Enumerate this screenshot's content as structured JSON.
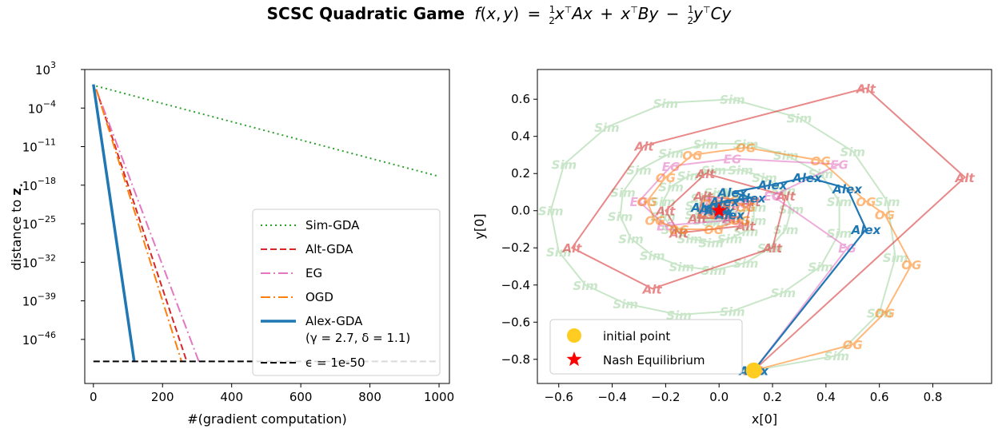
{
  "figure": {
    "title_bold": "SCSC Quadratic Game",
    "title_formula": {
      "f": "f",
      "x": "x",
      "y": "y",
      "A": "A",
      "B": "B",
      "C": "C",
      "one": "1",
      "two": "2",
      "T": "⊤",
      "open": "(",
      "comma": ",",
      "close": ")",
      "eq": "=",
      "plus": "+",
      "minus": "−"
    }
  },
  "chart_data": [
    {
      "type": "line",
      "xlabel": "#(gradient computation)",
      "ylabel": "distance to ",
      "ylabel_bold": "z",
      "ylabel_sub": "⋆",
      "yscale": "log",
      "xlim": [
        -25,
        1030
      ],
      "ylim_exp": [
        -54,
        3
      ],
      "x_ticks": [
        0,
        200,
        400,
        600,
        800,
        1000
      ],
      "y_ticks": [
        {
          "base": "10",
          "exp": "3",
          "value_exp": 3
        },
        {
          "base": "10",
          "exp": "−4",
          "value_exp": -4
        },
        {
          "base": "10",
          "exp": "−11",
          "value_exp": -11
        },
        {
          "base": "10",
          "exp": "−18",
          "value_exp": -18
        },
        {
          "base": "10",
          "exp": "−25",
          "value_exp": -25
        },
        {
          "base": "10",
          "exp": "−32",
          "value_exp": -32
        },
        {
          "base": "10",
          "exp": "−39",
          "value_exp": -39
        },
        {
          "base": "10",
          "exp": "−46",
          "value_exp": -46
        }
      ],
      "series": [
        {
          "name": "Sim-GDA",
          "color": "#2ca02c",
          "dash": "2,4",
          "width": 2,
          "points": [
            [
              8,
              0
            ],
            [
              1000,
              -16.4
            ]
          ]
        },
        {
          "name": "Alt-GDA",
          "color": "#d62728",
          "dash": "8,4",
          "width": 2,
          "points": [
            [
              8,
              -0.6
            ],
            [
              270,
              -50
            ]
          ]
        },
        {
          "name": "EG",
          "color": "#e377c2",
          "dash": "12,4,2,4",
          "width": 2,
          "points": [
            [
              8,
              -0.6
            ],
            [
              305,
              -50
            ]
          ]
        },
        {
          "name": "OGD",
          "color": "#ff7f0e",
          "dash": "12,4,2,4",
          "width": 2,
          "points": [
            [
              8,
              -0.6
            ],
            [
              255,
              -50
            ]
          ]
        },
        {
          "name": "Alex-GDA",
          "color": "#1f77b4",
          "dash": "",
          "width": 3.5,
          "points": [
            [
              0,
              0.3
            ],
            [
              118,
              -50
            ]
          ]
        },
        {
          "name": "ϵ = 1e-50",
          "color": "#000000",
          "dash": "8,4",
          "width": 2,
          "points": [
            [
              0,
              -50
            ],
            [
              1000,
              -50
            ]
          ]
        }
      ],
      "legend_position": "lower-right",
      "legend": [
        {
          "text": "Sim-GDA",
          "color": "#2ca02c",
          "dash": "2,4",
          "width": 2
        },
        {
          "text": "Alt-GDA",
          "color": "#d62728",
          "dash": "8,4",
          "width": 2
        },
        {
          "text": "EG",
          "color": "#e377c2",
          "dash": "12,4,2,4",
          "width": 2
        },
        {
          "text": "OGD",
          "color": "#ff7f0e",
          "dash": "12,4,2,4",
          "width": 2
        },
        {
          "text": "Alex-GDA",
          "subtext": "(γ = 2.7, δ = 1.1)",
          "color": "#1f77b4",
          "dash": "",
          "width": 3.5
        },
        {
          "text": "ϵ = 1e-50",
          "color": "#000000",
          "dash": "8,4",
          "width": 2
        }
      ]
    },
    {
      "type": "scatter",
      "xlabel": "x[0]",
      "ylabel": "y[0]",
      "xlim": [
        -0.68,
        1.02
      ],
      "ylim": [
        -0.93,
        0.76
      ],
      "x_ticks": [
        -0.6,
        -0.4,
        -0.2,
        0.0,
        0.2,
        0.4,
        0.6,
        0.8
      ],
      "x_tick_labels": [
        "−0.6",
        "−0.4",
        "−0.2",
        "0.0",
        "0.2",
        "0.4",
        "0.6",
        "0.8"
      ],
      "y_ticks": [
        0.6,
        0.4,
        0.2,
        0.0,
        -0.2,
        -0.4,
        -0.6,
        -0.8
      ],
      "y_tick_labels": [
        "0.6",
        "0.4",
        "0.2",
        "0.0",
        "−0.2",
        "−0.4",
        "−0.6",
        "−0.8"
      ],
      "series": [
        {
          "name": "Sim",
          "color": "#2ca02c",
          "opacity": 0.25,
          "marker_label": "Sim",
          "points": [
            [
              0.13,
              -0.86
            ],
            [
              0.44,
              -0.78
            ],
            [
              0.6,
              -0.55
            ],
            [
              0.66,
              -0.25
            ],
            [
              0.63,
              0.05
            ],
            [
              0.5,
              0.32
            ],
            [
              0.3,
              0.5
            ],
            [
              0.05,
              0.6
            ],
            [
              -0.2,
              0.58
            ],
            [
              -0.42,
              0.45
            ],
            [
              -0.58,
              0.25
            ],
            [
              -0.63,
              0.0
            ],
            [
              -0.6,
              -0.22
            ],
            [
              -0.5,
              -0.4
            ],
            [
              -0.35,
              -0.5
            ],
            [
              -0.15,
              -0.56
            ],
            [
              0.05,
              -0.54
            ],
            [
              0.24,
              -0.44
            ],
            [
              0.38,
              -0.3
            ],
            [
              0.45,
              -0.12
            ],
            [
              0.45,
              0.05
            ],
            [
              0.38,
              0.2
            ],
            [
              0.25,
              0.3
            ],
            [
              0.1,
              0.36
            ],
            [
              -0.05,
              0.36
            ],
            [
              -0.18,
              0.31
            ],
            [
              -0.3,
              0.22
            ],
            [
              -0.36,
              0.1
            ],
            [
              -0.37,
              -0.03
            ],
            [
              -0.33,
              -0.15
            ],
            [
              -0.25,
              -0.24
            ],
            [
              -0.14,
              -0.3
            ],
            [
              -0.02,
              -0.32
            ],
            [
              0.1,
              -0.28
            ],
            [
              0.19,
              -0.2
            ],
            [
              0.25,
              -0.1
            ],
            [
              0.27,
              0.01
            ],
            [
              0.24,
              0.11
            ],
            [
              0.17,
              0.18
            ],
            [
              0.08,
              0.22
            ],
            [
              -0.02,
              0.22
            ],
            [
              -0.11,
              0.19
            ],
            [
              -0.18,
              0.13
            ],
            [
              -0.21,
              0.05
            ],
            [
              -0.21,
              -0.03
            ],
            [
              -0.17,
              -0.1
            ],
            [
              -0.11,
              -0.15
            ],
            [
              -0.03,
              -0.17
            ],
            [
              0.04,
              -0.15
            ],
            [
              0.1,
              -0.11
            ],
            [
              0.13,
              -0.05
            ],
            [
              0.13,
              0.02
            ],
            [
              0.1,
              0.07
            ],
            [
              0.05,
              0.1
            ],
            [
              -0.01,
              0.1
            ],
            [
              -0.06,
              0.07
            ],
            [
              -0.08,
              0.03
            ],
            [
              -0.08,
              -0.02
            ],
            [
              -0.05,
              -0.05
            ],
            [
              -0.01,
              -0.06
            ],
            [
              0.03,
              -0.04
            ],
            [
              0.04,
              -0.01
            ],
            [
              0.03,
              0.02
            ],
            [
              0.0,
              0.02
            ]
          ]
        },
        {
          "name": "Alt",
          "color": "#d62728",
          "opacity": 0.55,
          "marker_label": "Alt",
          "points": [
            [
              0.13,
              -0.86
            ],
            [
              0.92,
              0.18
            ],
            [
              0.55,
              0.66
            ],
            [
              -0.28,
              0.35
            ],
            [
              -0.55,
              -0.2
            ],
            [
              -0.25,
              -0.42
            ],
            [
              0.2,
              -0.2
            ],
            [
              0.25,
              0.08
            ],
            [
              -0.05,
              0.2
            ],
            [
              -0.2,
              0.0
            ],
            [
              -0.15,
              -0.12
            ],
            [
              0.1,
              -0.08
            ],
            [
              0.12,
              0.05
            ],
            [
              -0.06,
              0.08
            ],
            [
              -0.08,
              -0.04
            ],
            [
              0.05,
              -0.04
            ],
            [
              0.03,
              0.03
            ],
            [
              0.0,
              0.0
            ]
          ]
        },
        {
          "name": "EG",
          "color": "#e377c2",
          "opacity": 0.6,
          "marker_label": "EG",
          "points": [
            [
              0.13,
              -0.86
            ],
            [
              0.48,
              -0.2
            ],
            [
              0.2,
              0.08
            ],
            [
              0.45,
              0.25
            ],
            [
              0.05,
              0.28
            ],
            [
              -0.18,
              0.24
            ],
            [
              -0.3,
              0.05
            ],
            [
              -0.2,
              -0.08
            ],
            [
              0.05,
              -0.05
            ],
            [
              0.08,
              0.04
            ],
            [
              -0.02,
              0.05
            ],
            [
              -0.04,
              -0.01
            ],
            [
              0.01,
              -0.02
            ],
            [
              0.0,
              0.0
            ]
          ]
        },
        {
          "name": "OG",
          "color": "#ff7f0e",
          "opacity": 0.55,
          "marker_label": "OG",
          "points": [
            [
              0.13,
              -0.86
            ],
            [
              0.5,
              -0.72
            ],
            [
              0.62,
              -0.55
            ],
            [
              0.72,
              -0.29
            ],
            [
              0.62,
              -0.02
            ],
            [
              0.55,
              0.05
            ],
            [
              0.38,
              0.27
            ],
            [
              0.1,
              0.34
            ],
            [
              -0.1,
              0.3
            ],
            [
              -0.2,
              0.18
            ],
            [
              -0.27,
              0.05
            ],
            [
              -0.24,
              -0.05
            ],
            [
              -0.15,
              -0.1
            ],
            [
              -0.02,
              -0.1
            ],
            [
              0.08,
              -0.05
            ],
            [
              0.1,
              0.02
            ],
            [
              0.04,
              0.06
            ],
            [
              -0.03,
              0.04
            ],
            [
              -0.04,
              -0.01
            ],
            [
              0.0,
              -0.02
            ],
            [
              0.0,
              0.0
            ]
          ]
        },
        {
          "name": "Alex",
          "color": "#1f77b4",
          "opacity": 1.0,
          "marker_label": "Alex",
          "points": [
            [
              0.13,
              -0.86
            ],
            [
              0.55,
              -0.1
            ],
            [
              0.48,
              0.12
            ],
            [
              0.33,
              0.18
            ],
            [
              0.2,
              0.14
            ],
            [
              0.05,
              0.1
            ],
            [
              0.12,
              0.07
            ],
            [
              0.02,
              0.05
            ],
            [
              -0.05,
              0.02
            ],
            [
              0.04,
              -0.02
            ],
            [
              -0.02,
              0.01
            ],
            [
              0.0,
              0.0
            ]
          ]
        }
      ],
      "initial_point": [
        0.13,
        -0.86
      ],
      "nash_point": [
        0.0,
        0.0
      ],
      "legend_position": "lower-left",
      "legend": [
        {
          "text": "initial point",
          "marker": "circle",
          "color": "#ffcc22"
        },
        {
          "text": "Nash Equilibrium",
          "marker": "star",
          "color": "#ff0000"
        }
      ]
    }
  ]
}
